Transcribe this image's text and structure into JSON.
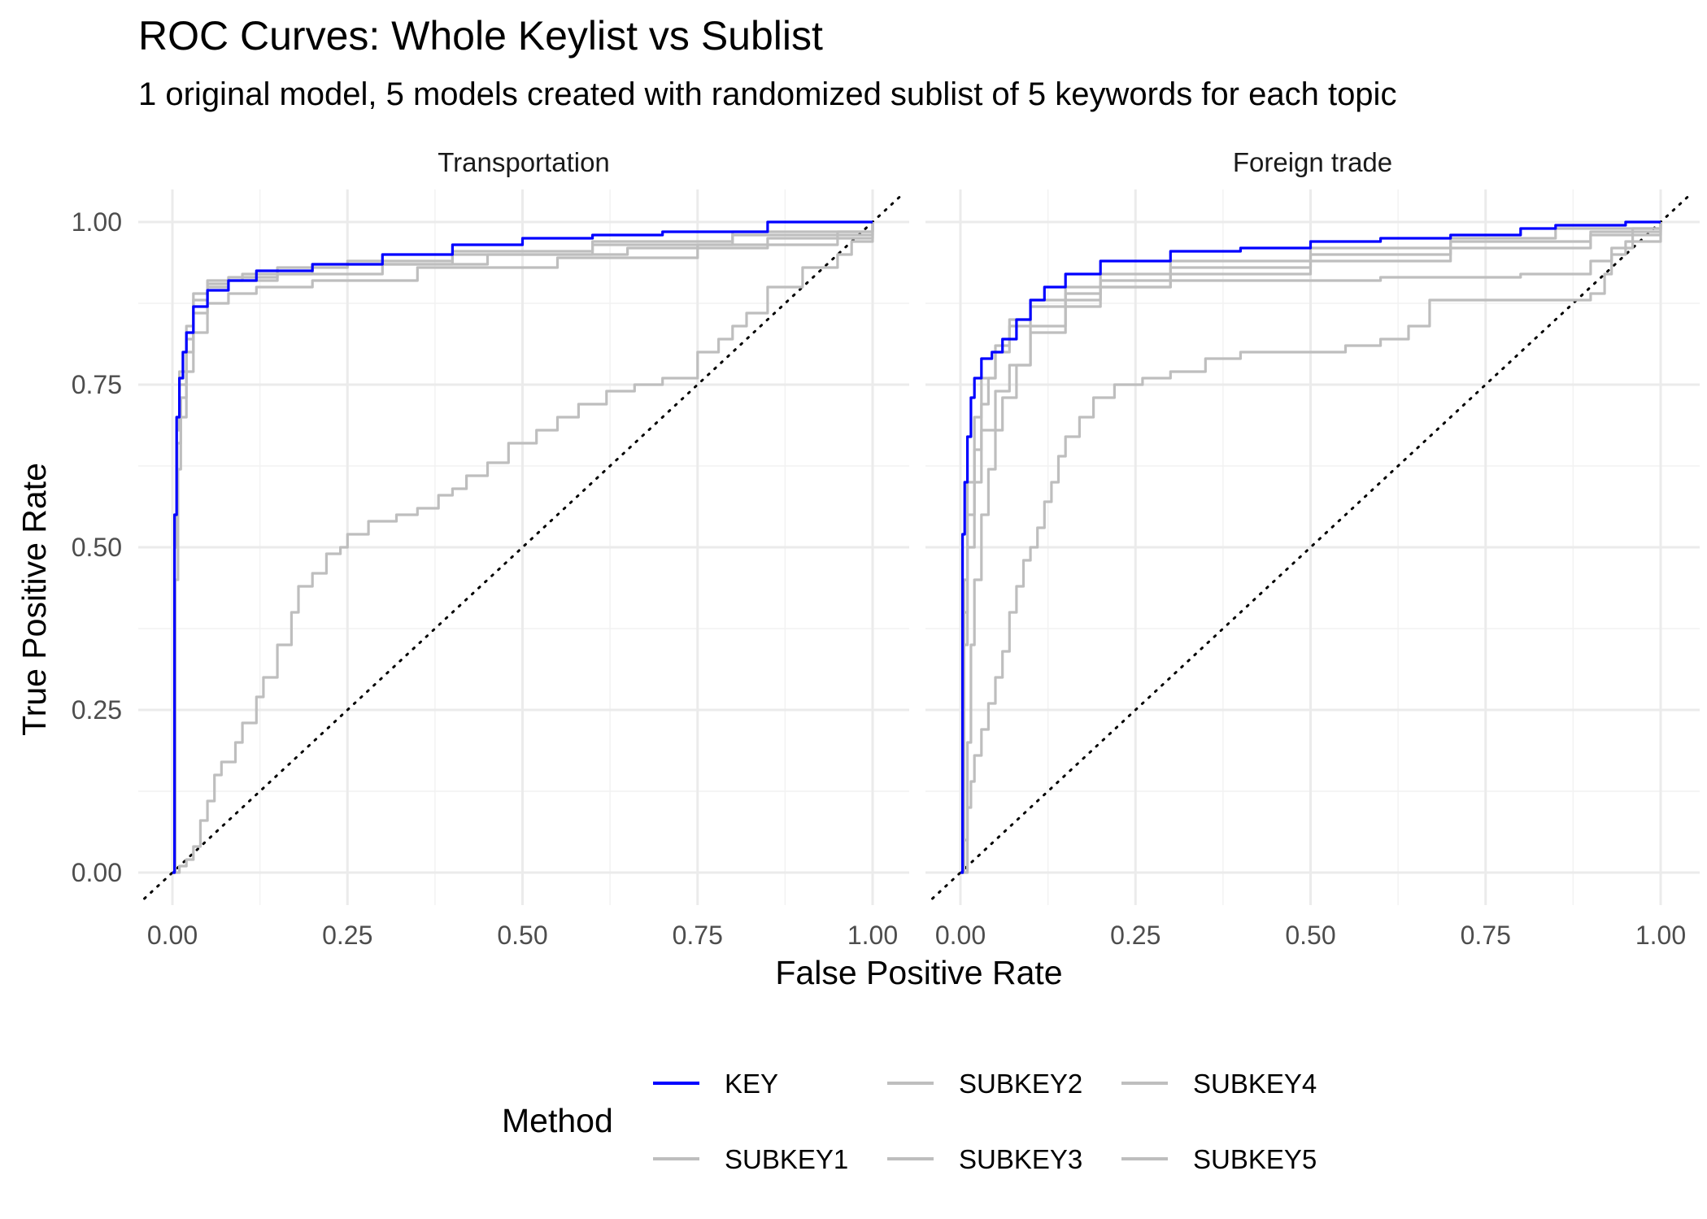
{
  "chart_data": {
    "type": "line",
    "title": "ROC Curves: Whole Keylist vs Sublist",
    "subtitle": "1 original model, 5 models created with randomized sublist of 5 keywords for each topic",
    "xlabel": "False Positive Rate",
    "ylabel": "True Positive Rate",
    "xlim": [
      0,
      1
    ],
    "ylim": [
      0,
      1
    ],
    "xticks": [
      "0.00",
      "0.25",
      "0.50",
      "0.75",
      "1.00"
    ],
    "yticks": [
      "0.00",
      "0.25",
      "0.50",
      "0.75",
      "1.00"
    ],
    "grid": true,
    "reference_line": "dotted diagonal y = x",
    "legend": {
      "title": "Method",
      "position": "bottom",
      "entries": [
        {
          "name": "KEY",
          "color": "#0000ff"
        },
        {
          "name": "SUBKEY1",
          "color": "#bebebe"
        },
        {
          "name": "SUBKEY2",
          "color": "#bebebe"
        },
        {
          "name": "SUBKEY3",
          "color": "#bebebe"
        },
        {
          "name": "SUBKEY4",
          "color": "#bebebe"
        },
        {
          "name": "SUBKEY5",
          "color": "#bebebe"
        }
      ]
    },
    "panels": [
      {
        "title": "Transportation",
        "series": [
          {
            "name": "KEY",
            "color": "#0000ff",
            "x": [
              0,
              0.003,
              0.006,
              0.01,
              0.015,
              0.02,
              0.03,
              0.05,
              0.08,
              0.12,
              0.2,
              0.3,
              0.4,
              0.5,
              0.6,
              0.7,
              0.85,
              1.0
            ],
            "y": [
              0,
              0.55,
              0.7,
              0.76,
              0.8,
              0.83,
              0.87,
              0.895,
              0.91,
              0.925,
              0.935,
              0.95,
              0.965,
              0.975,
              0.98,
              0.985,
              1.0,
              1.0
            ]
          },
          {
            "name": "SUBKEY1",
            "color": "#bebebe",
            "x": [
              0,
              0.003,
              0.006,
              0.01,
              0.02,
              0.03,
              0.05,
              0.08,
              0.15,
              0.25,
              0.4,
              0.6,
              0.8,
              1.0
            ],
            "y": [
              0,
              0.5,
              0.68,
              0.75,
              0.82,
              0.88,
              0.905,
              0.915,
              0.93,
              0.94,
              0.955,
              0.97,
              0.985,
              1.0
            ]
          },
          {
            "name": "SUBKEY2",
            "color": "#bebebe",
            "x": [
              0,
              0.004,
              0.008,
              0.012,
              0.02,
              0.03,
              0.05,
              0.08,
              0.12,
              0.2,
              0.35,
              0.55,
              0.75,
              0.95,
              1.0
            ],
            "y": [
              0,
              0.45,
              0.62,
              0.7,
              0.77,
              0.83,
              0.875,
              0.89,
              0.9,
              0.91,
              0.93,
              0.945,
              0.965,
              0.985,
              1.0
            ]
          },
          {
            "name": "SUBKEY3",
            "color": "#bebebe",
            "x": [
              0,
              0.003,
              0.007,
              0.012,
              0.02,
              0.03,
              0.05,
              0.08,
              0.15,
              0.3,
              0.45,
              0.65,
              0.85,
              1.0
            ],
            "y": [
              0,
              0.5,
              0.66,
              0.73,
              0.8,
              0.86,
              0.9,
              0.91,
              0.92,
              0.935,
              0.95,
              0.96,
              0.975,
              1.0
            ]
          },
          {
            "name": "SUBKEY4",
            "color": "#bebebe",
            "x": [
              0,
              0.003,
              0.006,
              0.01,
              0.02,
              0.03,
              0.05,
              0.1,
              0.2,
              0.4,
              0.6,
              0.8,
              1.0
            ],
            "y": [
              0,
              0.55,
              0.7,
              0.77,
              0.84,
              0.89,
              0.91,
              0.92,
              0.935,
              0.95,
              0.965,
              0.98,
              1.0
            ]
          },
          {
            "name": "SUBKEY5",
            "color": "#bebebe",
            "x": [
              0,
              0.01,
              0.02,
              0.03,
              0.04,
              0.05,
              0.06,
              0.07,
              0.09,
              0.1,
              0.12,
              0.13,
              0.15,
              0.17,
              0.18,
              0.2,
              0.22,
              0.24,
              0.25,
              0.28,
              0.32,
              0.35,
              0.38,
              0.4,
              0.42,
              0.45,
              0.48,
              0.5,
              0.52,
              0.55,
              0.58,
              0.62,
              0.66,
              0.7,
              0.75,
              0.78,
              0.8,
              0.82,
              0.85,
              0.9,
              0.95,
              0.97,
              1.0
            ],
            "y": [
              0,
              0.01,
              0.02,
              0.04,
              0.08,
              0.11,
              0.15,
              0.17,
              0.2,
              0.23,
              0.27,
              0.3,
              0.35,
              0.4,
              0.44,
              0.46,
              0.49,
              0.5,
              0.52,
              0.54,
              0.55,
              0.56,
              0.58,
              0.59,
              0.61,
              0.63,
              0.66,
              0.66,
              0.68,
              0.7,
              0.72,
              0.74,
              0.75,
              0.76,
              0.8,
              0.82,
              0.84,
              0.86,
              0.9,
              0.93,
              0.95,
              0.97,
              1.0
            ]
          }
        ]
      },
      {
        "title": "Foreign trade",
        "series": [
          {
            "name": "KEY",
            "color": "#0000ff",
            "x": [
              0,
              0.003,
              0.006,
              0.01,
              0.015,
              0.02,
              0.03,
              0.045,
              0.06,
              0.08,
              0.1,
              0.12,
              0.15,
              0.2,
              0.3,
              0.4,
              0.5,
              0.6,
              0.7,
              0.8,
              0.85,
              0.95,
              1.0
            ],
            "y": [
              0,
              0.52,
              0.6,
              0.67,
              0.73,
              0.76,
              0.79,
              0.8,
              0.82,
              0.85,
              0.88,
              0.9,
              0.92,
              0.94,
              0.955,
              0.96,
              0.97,
              0.975,
              0.98,
              0.99,
              0.995,
              1.0,
              1.0
            ]
          },
          {
            "name": "SUBKEY1",
            "color": "#bebebe",
            "x": [
              0,
              0.005,
              0.01,
              0.02,
              0.03,
              0.04,
              0.05,
              0.07,
              0.1,
              0.15,
              0.2,
              0.3,
              0.5,
              0.7,
              0.9,
              1.0
            ],
            "y": [
              0,
              0.4,
              0.55,
              0.65,
              0.72,
              0.76,
              0.8,
              0.84,
              0.87,
              0.89,
              0.91,
              0.93,
              0.95,
              0.97,
              0.985,
              1.0
            ]
          },
          {
            "name": "SUBKEY2",
            "color": "#bebebe",
            "x": [
              0,
              0.005,
              0.01,
              0.02,
              0.03,
              0.05,
              0.07,
              0.1,
              0.15,
              0.2,
              0.3,
              0.5,
              0.7,
              0.85,
              1.0
            ],
            "y": [
              0,
              0.45,
              0.6,
              0.7,
              0.76,
              0.81,
              0.85,
              0.88,
              0.9,
              0.92,
              0.94,
              0.96,
              0.975,
              0.99,
              1.0
            ]
          },
          {
            "name": "SUBKEY3",
            "color": "#bebebe",
            "x": [
              0,
              0.005,
              0.01,
              0.02,
              0.03,
              0.05,
              0.07,
              0.1,
              0.15,
              0.2,
              0.3,
              0.5,
              0.7,
              0.9,
              1.0
            ],
            "y": [
              0,
              0.35,
              0.5,
              0.6,
              0.68,
              0.74,
              0.78,
              0.83,
              0.87,
              0.9,
              0.92,
              0.94,
              0.96,
              0.98,
              1.0
            ]
          },
          {
            "name": "SUBKEY4",
            "color": "#bebebe",
            "x": [
              0,
              0.01,
              0.015,
              0.02,
              0.03,
              0.04,
              0.05,
              0.06,
              0.08,
              0.1,
              0.15,
              0.2,
              0.3,
              0.4,
              0.6,
              0.8,
              0.9,
              0.93,
              0.96,
              1.0
            ],
            "y": [
              0,
              0.2,
              0.35,
              0.45,
              0.55,
              0.62,
              0.68,
              0.73,
              0.78,
              0.84,
              0.88,
              0.9,
              0.91,
              0.91,
              0.915,
              0.92,
              0.94,
              0.96,
              0.99,
              1.0
            ]
          },
          {
            "name": "SUBKEY5",
            "color": "#bebebe",
            "x": [
              0,
              0.005,
              0.01,
              0.015,
              0.02,
              0.03,
              0.04,
              0.05,
              0.06,
              0.07,
              0.08,
              0.09,
              0.1,
              0.11,
              0.12,
              0.13,
              0.14,
              0.15,
              0.17,
              0.19,
              0.22,
              0.26,
              0.3,
              0.35,
              0.4,
              0.5,
              0.55,
              0.6,
              0.64,
              0.67,
              0.7,
              0.8,
              0.87,
              0.9,
              0.92,
              0.93,
              0.95,
              1.0
            ],
            "y": [
              0,
              0.05,
              0.1,
              0.14,
              0.18,
              0.22,
              0.26,
              0.3,
              0.34,
              0.4,
              0.44,
              0.48,
              0.5,
              0.53,
              0.57,
              0.6,
              0.64,
              0.67,
              0.7,
              0.73,
              0.75,
              0.76,
              0.77,
              0.79,
              0.8,
              0.8,
              0.81,
              0.82,
              0.84,
              0.88,
              0.88,
              0.88,
              0.88,
              0.89,
              0.92,
              0.95,
              0.97,
              1.0
            ]
          }
        ]
      }
    ]
  }
}
